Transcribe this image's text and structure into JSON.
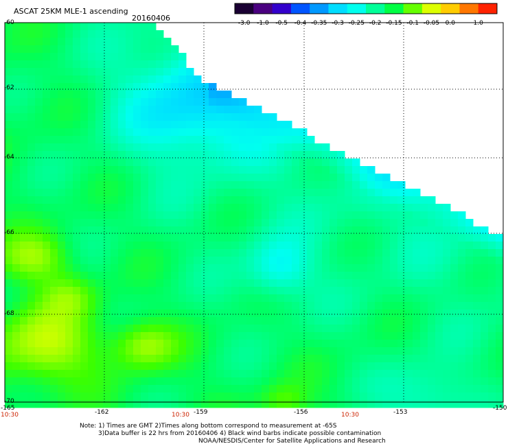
{
  "header": {
    "title": "ASCAT 25KM MLE-1 ascending",
    "date": "20160406"
  },
  "colorbar": {
    "labels": [
      "-3.0",
      "-1.0",
      "-0.5",
      "-0.4",
      "-0.35",
      "-0.3",
      "-0.25",
      "-0.2",
      "-0.15",
      "-0.1",
      "-0.05",
      "0.0",
      "1.0"
    ],
    "colors": [
      "#1a0033",
      "#4a0080",
      "#3300cc",
      "#0055ff",
      "#0099ff",
      "#00ddff",
      "#00ffee",
      "#00ff99",
      "#00ff44",
      "#66ff00",
      "#ddff00",
      "#ffcc00",
      "#ff7700",
      "#ff2200"
    ]
  },
  "map": {
    "lat_labels": [
      "-60",
      "-62",
      "-64",
      "-66",
      "-68",
      "-70"
    ],
    "lon_labels": [
      "-165",
      "-162",
      "-159",
      "-156",
      "-153",
      "-150"
    ],
    "time_labels": [
      "10:30",
      "10:30",
      "10:30"
    ]
  },
  "notes": {
    "line1": "Note: 1) Times are GMT 2)Times along bottom correspond to measurement at -65S",
    "line2": "3)Data buffer is 22 hrs from 20160406 4) Black wind barbs indicate possible contamination",
    "line3": "NOAA/NESDIS/Center for Satellite Applications and Research"
  }
}
